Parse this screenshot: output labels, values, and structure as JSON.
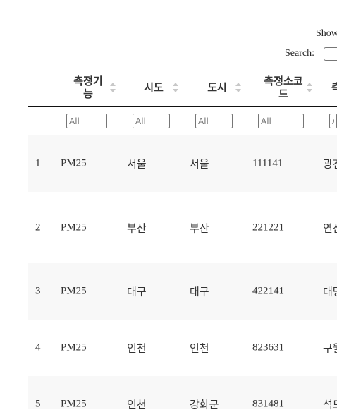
{
  "controls": {
    "show_text": "Show",
    "search_label": "Search:"
  },
  "table": {
    "columns": [
      {
        "label_line1": "측정기",
        "label_line2": "능"
      },
      {
        "label_line1": "시도",
        "label_line2": ""
      },
      {
        "label_line1": "도시",
        "label_line2": ""
      },
      {
        "label_line1": "측정소코",
        "label_line2": "드"
      },
      {
        "label_line1": "측",
        "label_line2": ""
      }
    ],
    "filter_placeholder": "All",
    "rows": [
      {
        "idx": "1",
        "c1": "PM25",
        "c2": "서울",
        "c3": "서울",
        "c4": "111141",
        "c5": "광진"
      },
      {
        "idx": "2",
        "c1": "PM25",
        "c2": "부산",
        "c3": "부산",
        "c4": "221221",
        "c5": "연산"
      },
      {
        "idx": "3",
        "c1": "PM25",
        "c2": "대구",
        "c3": "대구",
        "c4": "422141",
        "c5": "대명"
      },
      {
        "idx": "4",
        "c1": "PM25",
        "c2": "인천",
        "c3": "인천",
        "c4": "823631",
        "c5": "구월"
      },
      {
        "idx": "5",
        "c1": "PM25",
        "c2": "인천",
        "c3": "강화군",
        "c4": "831481",
        "c5": "석모"
      }
    ]
  }
}
